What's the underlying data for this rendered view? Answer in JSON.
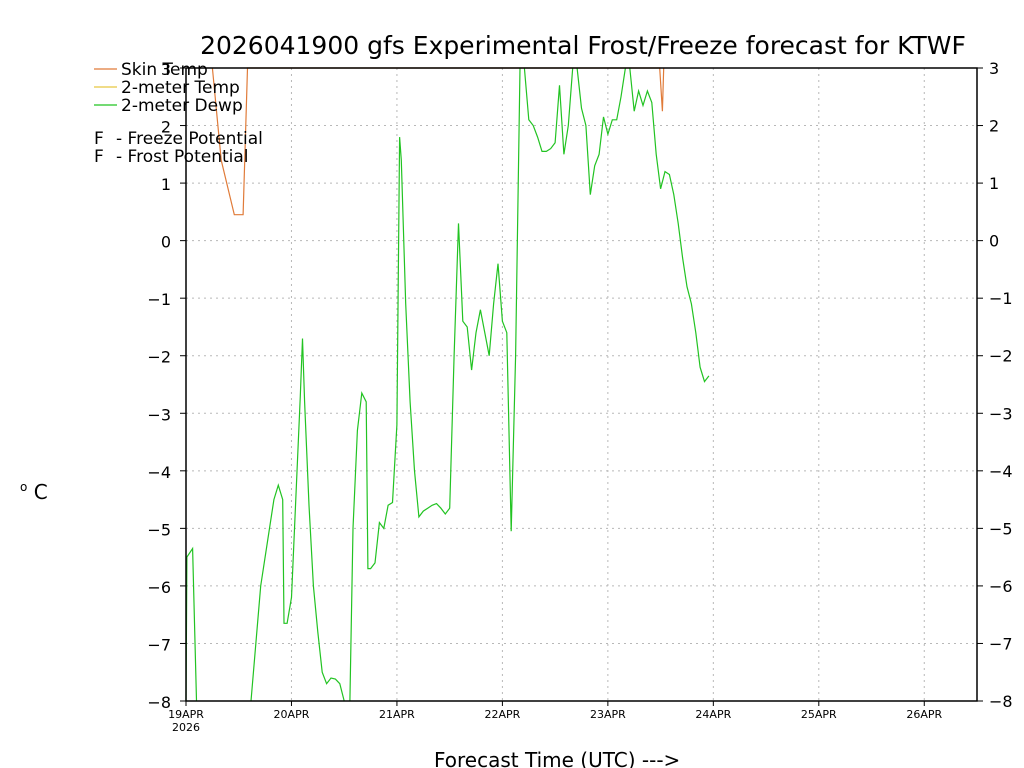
{
  "chart_data": {
    "type": "line",
    "title": "2026041900 gfs Experimental Frost/Freeze forecast for KTWF",
    "xlabel": "Forecast Time (UTC) --->",
    "ylabel": "°C",
    "ylabel_deg": "o",
    "ylabel_unit": "C",
    "ylim": [
      -8,
      3
    ],
    "yticks": [
      3,
      2,
      1,
      0,
      -1,
      -2,
      -3,
      -4,
      -5,
      -6,
      -7,
      -8
    ],
    "x_unit": "hours since 19APR 00Z",
    "xlim": [
      0,
      180
    ],
    "xticks": [
      {
        "label": "19APR",
        "sublabel": "2026",
        "x": 0
      },
      {
        "label": "20APR",
        "x": 24
      },
      {
        "label": "21APR",
        "x": 48
      },
      {
        "label": "22APR",
        "x": 72
      },
      {
        "label": "23APR",
        "x": 96
      },
      {
        "label": "24APR",
        "x": 120
      },
      {
        "label": "25APR",
        "x": 144
      },
      {
        "label": "26APR",
        "x": 168
      }
    ],
    "grid": true,
    "legend": [
      {
        "name": "Skin Temp",
        "color": "#e07b39"
      },
      {
        "name": "2-meter Temp",
        "color": "#e8c840"
      },
      {
        "name": "2-meter Dewp",
        "color": "#22c322"
      }
    ],
    "potential_legend": [
      {
        "letter": "F",
        "text": "- Freeze Potential",
        "color": "#c040a0"
      },
      {
        "letter": "F",
        "text": "- Frost Potential",
        "color": "#4060e0"
      }
    ],
    "series": [
      {
        "name": "Skin Temp",
        "color": "#e07b39",
        "points": [
          [
            6,
            3.0
          ],
          [
            8,
            1.4
          ],
          [
            11,
            0.45
          ],
          [
            13,
            0.45
          ],
          [
            14,
            3.0
          ],
          [
            107.8,
            3.0
          ],
          [
            108.4,
            2.25
          ],
          [
            108.7,
            3.0
          ]
        ]
      },
      {
        "name": "2-meter Dewp",
        "color": "#22c322",
        "segments": [
          [
            [
              0,
              -8.0
            ],
            [
              0.2,
              -5.5
            ],
            [
              1.5,
              -5.35
            ],
            [
              2.4,
              -8.0
            ]
          ],
          [
            [
              14.8,
              -8.0
            ],
            [
              17,
              -6.0
            ],
            [
              19,
              -5.0
            ],
            [
              20,
              -4.5
            ],
            [
              21,
              -4.25
            ],
            [
              22,
              -4.5
            ],
            [
              22.3,
              -6.65
            ],
            [
              23,
              -6.65
            ],
            [
              24,
              -6.2
            ],
            [
              26,
              -2.7
            ],
            [
              26.5,
              -1.7
            ],
            [
              27,
              -2.8
            ],
            [
              28,
              -4.6
            ],
            [
              29,
              -6.0
            ],
            [
              30,
              -6.8
            ],
            [
              31,
              -7.5
            ],
            [
              32,
              -7.7
            ],
            [
              33,
              -7.6
            ],
            [
              34,
              -7.62
            ],
            [
              35,
              -7.7
            ],
            [
              36,
              -8.0
            ]
          ],
          [
            [
              37.3,
              -8.0
            ],
            [
              38,
              -5.0
            ],
            [
              39,
              -3.3
            ],
            [
              40,
              -2.65
            ],
            [
              41,
              -2.8
            ],
            [
              41.4,
              -5.7
            ],
            [
              42,
              -5.7
            ],
            [
              43,
              -5.6
            ],
            [
              44,
              -4.9
            ],
            [
              45,
              -5.0
            ],
            [
              46,
              -4.6
            ],
            [
              47,
              -4.55
            ],
            [
              48,
              -3.2
            ],
            [
              48.6,
              1.8
            ],
            [
              49,
              1.4
            ],
            [
              50,
              -1.1
            ],
            [
              51,
              -2.8
            ],
            [
              52,
              -4.0
            ],
            [
              53,
              -4.8
            ],
            [
              54,
              -4.7
            ],
            [
              55,
              -4.65
            ],
            [
              56,
              -4.6
            ],
            [
              57,
              -4.57
            ],
            [
              58,
              -4.65
            ],
            [
              59,
              -4.75
            ],
            [
              60,
              -4.65
            ],
            [
              61,
              -2.0
            ],
            [
              62,
              0.3
            ],
            [
              63,
              -1.4
            ],
            [
              64,
              -1.5
            ],
            [
              65,
              -2.25
            ],
            [
              66,
              -1.6
            ],
            [
              67,
              -1.2
            ],
            [
              68,
              -1.6
            ],
            [
              69,
              -2.0
            ],
            [
              70,
              -1.1
            ],
            [
              71,
              -0.4
            ],
            [
              72,
              -1.4
            ],
            [
              73,
              -1.6
            ],
            [
              74,
              -5.05
            ],
            [
              75,
              -2.0
            ],
            [
              76,
              3.0
            ]
          ],
          [
            [
              77,
              3.0
            ],
            [
              78,
              2.1
            ],
            [
              79,
              2.0
            ],
            [
              80,
              1.8
            ],
            [
              81,
              1.55
            ],
            [
              82,
              1.55
            ],
            [
              83,
              1.6
            ],
            [
              84,
              1.7
            ],
            [
              85,
              2.7
            ],
            [
              86,
              1.5
            ],
            [
              87,
              2.0
            ],
            [
              88,
              3.0
            ]
          ],
          [
            [
              89,
              3.0
            ],
            [
              90,
              2.3
            ],
            [
              91,
              2.0
            ],
            [
              92,
              0.8
            ],
            [
              93,
              1.3
            ],
            [
              94,
              1.5
            ],
            [
              95,
              2.15
            ],
            [
              96,
              1.85
            ],
            [
              97,
              2.1
            ],
            [
              98,
              2.1
            ],
            [
              99,
              2.5
            ],
            [
              100,
              3.0
            ]
          ],
          [
            [
              101,
              3.0
            ],
            [
              102,
              2.25
            ],
            [
              103,
              2.6
            ],
            [
              104,
              2.35
            ],
            [
              105,
              2.6
            ],
            [
              106,
              2.4
            ],
            [
              107,
              1.5
            ],
            [
              108,
              0.9
            ],
            [
              109,
              1.2
            ],
            [
              110,
              1.15
            ],
            [
              111,
              0.8
            ],
            [
              112,
              0.3
            ],
            [
              113,
              -0.3
            ],
            [
              114,
              -0.8
            ],
            [
              115,
              -1.1
            ],
            [
              116,
              -1.6
            ],
            [
              117,
              -2.2
            ],
            [
              118,
              -2.45
            ],
            [
              119,
              -2.35
            ]
          ]
        ]
      }
    ]
  }
}
